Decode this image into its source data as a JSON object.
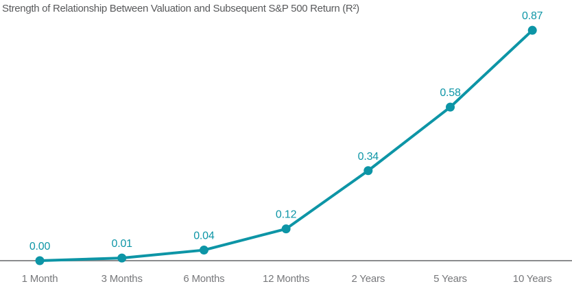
{
  "chart_data": {
    "type": "line",
    "title": "Strength of Relationship Between Valuation and Subsequent S&P 500 Return (R²)",
    "categories": [
      "1 Month",
      "3 Months",
      "6 Months",
      "12 Months",
      "2 Years",
      "5 Years",
      "10 Years"
    ],
    "values": [
      0.0,
      0.01,
      0.04,
      0.12,
      0.34,
      0.58,
      0.87
    ],
    "value_labels": [
      "0.00",
      "0.01",
      "0.04",
      "0.12",
      "0.34",
      "0.58",
      "0.87"
    ],
    "xlabel": "",
    "ylabel": "",
    "ylim": [
      0,
      0.95
    ],
    "grid": false,
    "legend": "none",
    "y_axis_visible": false,
    "x_axis_line_visible": true,
    "colors": {
      "line": "#0D95A6",
      "marker": "#0D95A6",
      "value_labels": "#0D95A6",
      "axis_line": "#8A8B8D",
      "tick_labels": "#77787B",
      "title": "#58595B",
      "background": "#FFFFFF"
    }
  }
}
